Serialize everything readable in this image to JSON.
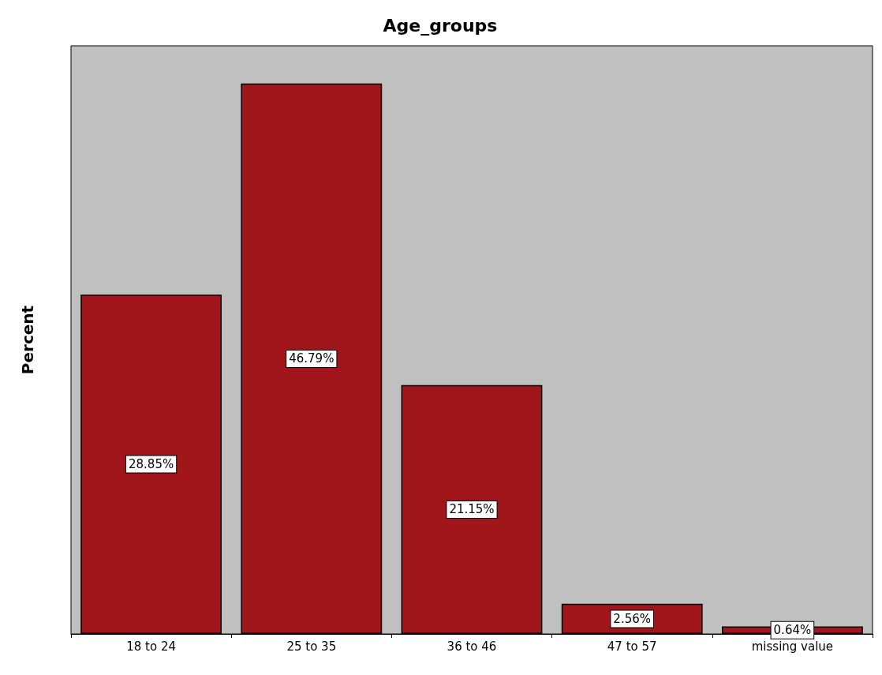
{
  "chart_data": {
    "type": "bar",
    "title": "Age_groups",
    "ylabel": "Percent",
    "categories": [
      "18 to 24",
      "25 to 35",
      "36 to 46",
      "47 to 57",
      "missing value"
    ],
    "values": [
      28.85,
      46.79,
      21.15,
      2.56,
      0.64
    ],
    "value_labels": [
      "28.85%",
      "46.79%",
      "21.15%",
      "2.56%",
      "0.64%"
    ],
    "color": "#a0161a",
    "tick_labels": "x",
    "grid": false
  }
}
